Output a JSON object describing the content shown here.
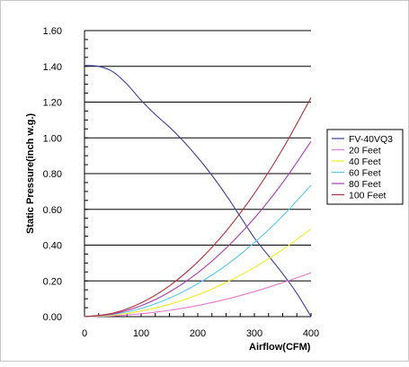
{
  "chart_data": {
    "type": "line",
    "xlabel": "Airflow(CFM)",
    "ylabel": "Static Pressure(inch w.g.)",
    "xlim": [
      0,
      400
    ],
    "ylim": [
      0,
      1.6
    ],
    "x_ticks": [
      "0",
      "100",
      "200",
      "300",
      "400"
    ],
    "y_ticks": [
      "0.00",
      "0.20",
      "0.40",
      "0.60",
      "0.80",
      "1.00",
      "1.20",
      "1.40",
      "1.60"
    ],
    "grid": "horizontal",
    "legend_position": "right",
    "series": [
      {
        "name": "FV-40VQ3",
        "color": "#3b3f9a",
        "x": [
          0,
          25,
          50,
          75,
          100,
          125,
          150,
          175,
          200,
          225,
          250,
          275,
          300,
          325,
          350,
          375,
          400
        ],
        "y": [
          1.405,
          1.4,
          1.37,
          1.3,
          1.21,
          1.13,
          1.06,
          0.98,
          0.89,
          0.79,
          0.68,
          0.56,
          0.44,
          0.34,
          0.24,
          0.13,
          0.0
        ]
      },
      {
        "name": "20 Feet",
        "color": "#e67ad0",
        "x": [
          0,
          50,
          100,
          150,
          200,
          250,
          300,
          350,
          400
        ],
        "y": [
          0,
          0.004,
          0.016,
          0.035,
          0.062,
          0.097,
          0.14,
          0.19,
          0.245
        ]
      },
      {
        "name": "40 Feet",
        "color": "#f2ea2a",
        "x": [
          0,
          50,
          100,
          150,
          200,
          250,
          300,
          350,
          400
        ],
        "y": [
          0,
          0.008,
          0.031,
          0.069,
          0.122,
          0.191,
          0.275,
          0.375,
          0.49
        ]
      },
      {
        "name": "60 Feet",
        "color": "#5bc8ec",
        "x": [
          0,
          50,
          100,
          150,
          200,
          250,
          300,
          350,
          400
        ],
        "y": [
          0,
          0.012,
          0.046,
          0.103,
          0.184,
          0.287,
          0.414,
          0.563,
          0.735
        ]
      },
      {
        "name": "80 Feet",
        "color": "#a63bb0",
        "x": [
          0,
          50,
          100,
          150,
          200,
          250,
          300,
          350,
          400
        ],
        "y": [
          0,
          0.015,
          0.061,
          0.138,
          0.245,
          0.383,
          0.551,
          0.75,
          0.98
        ]
      },
      {
        "name": "100 Feet",
        "color": "#b0303a",
        "x": [
          0,
          50,
          100,
          150,
          200,
          250,
          300,
          350,
          400
        ],
        "y": [
          0,
          0.019,
          0.077,
          0.172,
          0.306,
          0.478,
          0.689,
          0.938,
          1.225
        ]
      }
    ]
  }
}
